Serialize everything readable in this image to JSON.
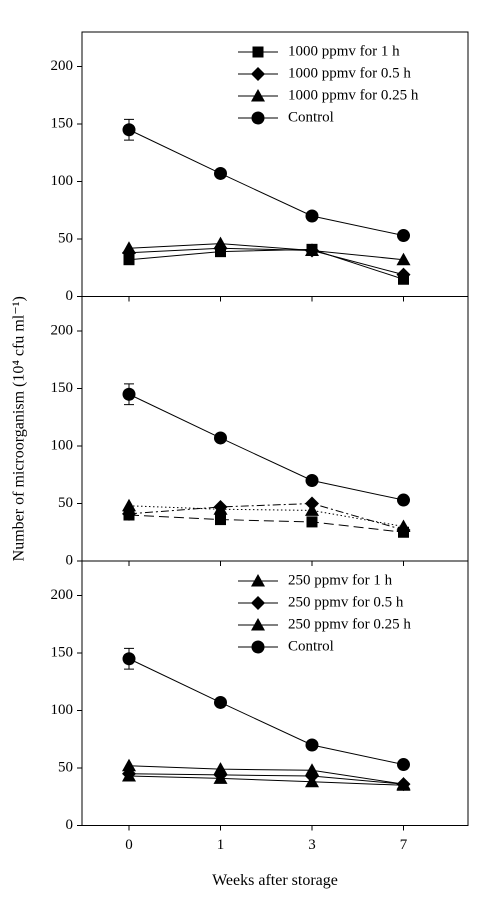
{
  "chart_data": [
    {
      "type": "line",
      "categories": [
        null,
        null,
        null,
        null
      ],
      "ylim": [
        0,
        230
      ],
      "yticks": [
        0,
        50,
        100,
        150,
        200
      ],
      "legend": "upper-right",
      "series": [
        {
          "name": "1000 ppmv for 1 h",
          "color": "#000000",
          "marker": "square",
          "dash": "solid",
          "values": [
            32,
            39,
            41,
            15
          ]
        },
        {
          "name": "1000 ppmv for 0.5 h",
          "color": "#000000",
          "marker": "diamond",
          "dash": "solid",
          "values": [
            38,
            42,
            40,
            19
          ]
        },
        {
          "name": "1000 ppmv for 0.25 h",
          "color": "#000000",
          "marker": "triangle",
          "dash": "solid",
          "values": [
            42,
            46,
            40,
            32
          ]
        },
        {
          "name": "Control",
          "color": "#000000",
          "marker": "circle",
          "dash": "solid",
          "values": [
            145,
            107,
            70,
            53
          ],
          "errors": [
            9,
            2,
            3,
            2
          ]
        }
      ]
    },
    {
      "type": "line",
      "categories": [
        null,
        null,
        null,
        null
      ],
      "ylim": [
        0,
        230
      ],
      "yticks": [
        0,
        50,
        100,
        150,
        200
      ],
      "ylabel": "Number of microorganism (10⁴ cfu ml⁻¹)",
      "series": [
        {
          "color": "#000000",
          "marker": "square",
          "dash": "dashed",
          "values": [
            40,
            36,
            34,
            25
          ]
        },
        {
          "color": "#000000",
          "marker": "diamond",
          "dash": "dash-dot",
          "values": [
            41,
            47,
            50,
            27
          ]
        },
        {
          "color": "#000000",
          "marker": "triangle",
          "dash": "dotted",
          "values": [
            48,
            45,
            44,
            30
          ]
        },
        {
          "color": "#000000",
          "marker": "circle",
          "dash": "solid",
          "values": [
            145,
            107,
            70,
            53
          ],
          "errors": [
            9,
            2,
            3,
            2
          ]
        }
      ]
    },
    {
      "type": "line",
      "categories": [
        "0",
        "1",
        "3",
        "7"
      ],
      "ylim": [
        0,
        230
      ],
      "yticks": [
        0,
        50,
        100,
        150,
        200
      ],
      "legend": "upper-right",
      "xlabel": "Weeks after storage",
      "series": [
        {
          "name": "250 ppmv for 1 h",
          "color": "#000000",
          "marker": "triangle",
          "dash": "solid",
          "values": [
            43,
            41,
            38,
            35
          ]
        },
        {
          "name": "250 ppmv for 0.5 h",
          "color": "#000000",
          "marker": "diamond",
          "dash": "solid",
          "values": [
            45,
            44,
            43,
            36
          ]
        },
        {
          "name": "250 ppmv for 0.25 h",
          "color": "#000000",
          "marker": "triangle",
          "dash": "solid",
          "values": [
            52,
            49,
            48,
            36
          ]
        },
        {
          "name": "Control",
          "color": "#000000",
          "marker": "circle",
          "dash": "solid",
          "values": [
            145,
            107,
            70,
            53
          ],
          "errors": [
            9,
            2,
            3,
            2
          ]
        }
      ]
    }
  ]
}
